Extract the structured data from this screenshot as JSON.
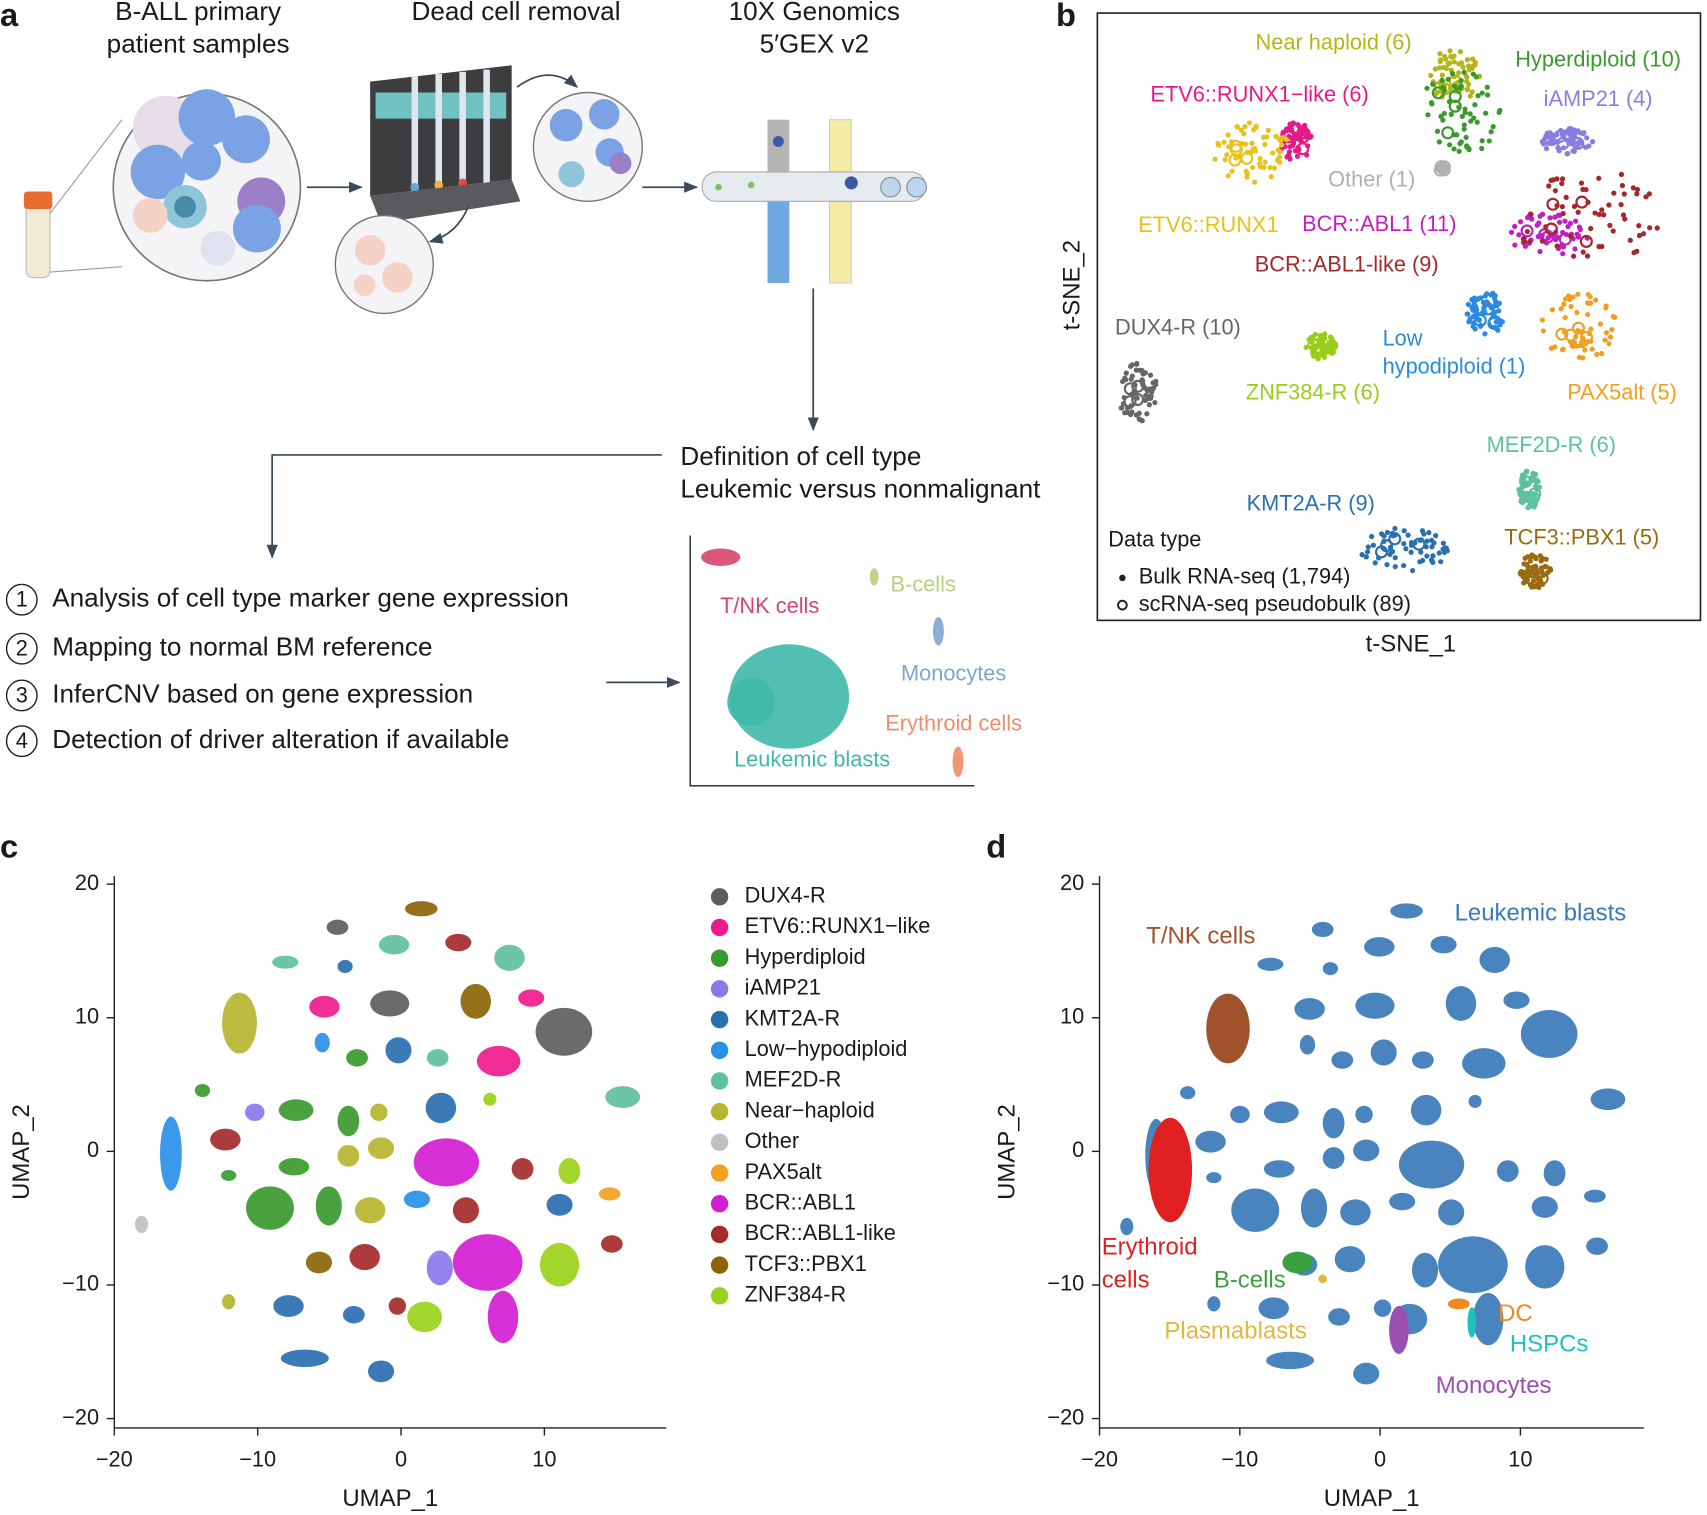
{
  "panel_a": {
    "letter": "a",
    "step1": [
      "B-ALL primary",
      "patient samples"
    ],
    "step2": "Dead cell removal",
    "step3": [
      "10X Genomics",
      "5′GEX v2"
    ],
    "definition": [
      "Definition of cell type",
      "Leukemic versus nonmalignant"
    ],
    "analyses": [
      {
        "number": "1",
        "text": "Analysis of cell type marker gene expression"
      },
      {
        "number": "2",
        "text": "Mapping to normal BM reference"
      },
      {
        "number": "3",
        "text": "InferCNV based on gene expression"
      },
      {
        "number": "4",
        "text": "Detection of driver alteration if available"
      }
    ],
    "cell_types": [
      {
        "name": "T/NK cells",
        "color": "#d8456e"
      },
      {
        "name": "B-cells",
        "color": "#b9cf7a"
      },
      {
        "name": "Monocytes",
        "color": "#7fa6cf"
      },
      {
        "name": "Erythroid cells",
        "color": "#ee8c6c"
      },
      {
        "name": "Leukemic blasts",
        "color": "#3fb8aa"
      }
    ]
  },
  "panel_b": {
    "letter": "b",
    "xlabel": "t-SNE_1",
    "ylabel": "t-SNE_2",
    "groups": [
      {
        "label": [
          "Near haploid (6)"
        ],
        "color": "#b5b51a"
      },
      {
        "label": [
          "Hyperdiploid (10)"
        ],
        "color": "#3a9a2e"
      },
      {
        "label": [
          "ETV6::RUNX1−like (6)"
        ],
        "color": "#e6198a"
      },
      {
        "label": [
          "iAMP21 (4)"
        ],
        "color": "#8a7de0"
      },
      {
        "label": [
          "Other (1)"
        ],
        "color": "#b0b0b0"
      },
      {
        "label": [
          "ETV6::RUNX1"
        ],
        "color": "#e8c21a"
      },
      {
        "label": [
          "BCR::ABL1 (11)"
        ],
        "color": "#c21ec2"
      },
      {
        "label": [
          "BCR::ABL1-like (9)"
        ],
        "color": "#a3282a"
      },
      {
        "label": [
          "DUX4-R (10)"
        ],
        "color": "#666666"
      },
      {
        "label": [
          "Low",
          "hypodiploid (1)"
        ],
        "color": "#2a8ae0"
      },
      {
        "label": [
          "ZNF384-R (6)"
        ],
        "color": "#9acd1a"
      },
      {
        "label": [
          "PAX5alt (5)"
        ],
        "color": "#f0a020"
      },
      {
        "label": [
          "MEF2D-R (6)"
        ],
        "color": "#5fc0a0"
      },
      {
        "label": [
          "KMT2A-R (9)"
        ],
        "color": "#2a70b0"
      },
      {
        "label": [
          "TCF3::PBX1 (5)"
        ],
        "color": "#9a6a10"
      }
    ],
    "legend_title": "Data type",
    "legend": [
      "Bulk RNA-seq (1,794)",
      "scRNA-seq pseudobulk (89)"
    ]
  },
  "panel_c": {
    "letter": "c",
    "xlabel": "UMAP_1",
    "ylabel": "UMAP_2",
    "xlim": [
      -20,
      18.5
    ],
    "ylim": [
      -20.7,
      20.6
    ],
    "xticks": [
      {
        "value": -20,
        "label": "−20"
      },
      {
        "value": -10,
        "label": "−10"
      },
      0,
      10
    ],
    "yticks": [
      {
        "value": -20,
        "label": "−20"
      },
      {
        "value": -10,
        "label": "−10"
      },
      0,
      10,
      20
    ],
    "legend": [
      {
        "name": "DUX4-R",
        "color": "#5e5e5e"
      },
      {
        "name": "ETV6::RUNX1−like",
        "color": "#ef1b8e"
      },
      {
        "name": "Hyperdiploid",
        "color": "#3a9a2e"
      },
      {
        "name": "iAMP21",
        "color": "#8a78e8"
      },
      {
        "name": "KMT2A-R",
        "color": "#2a6fb0"
      },
      {
        "name": "Low−hypodiploid",
        "color": "#2990e8"
      },
      {
        "name": "MEF2D-R",
        "color": "#5fc0a0"
      },
      {
        "name": "Near−haploid",
        "color": "#b5b530"
      },
      {
        "name": "Other",
        "color": "#c0c0c0"
      },
      {
        "name": "PAX5alt",
        "color": "#f5a020"
      },
      {
        "name": "BCR::ABL1",
        "color": "#d21ed2"
      },
      {
        "name": "BCR::ABL1-like",
        "color": "#a52a2a"
      },
      {
        "name": "TCF3::PBX1",
        "color": "#8b6508"
      },
      {
        "name": "ZNF384-R",
        "color": "#9ad21a"
      }
    ]
  },
  "panel_d": {
    "letter": "d",
    "xlabel": "UMAP_1",
    "ylabel": "UMAP_2",
    "xlim": [
      -20,
      18.8
    ],
    "ylim": [
      -20.7,
      20.6
    ],
    "xticks": [
      {
        "value": -20,
        "label": "−20"
      },
      {
        "value": -10,
        "label": "−10"
      },
      0,
      10
    ],
    "yticks": [
      {
        "value": -20,
        "label": "−20"
      },
      {
        "value": -10,
        "label": "−10"
      },
      0,
      10,
      20
    ],
    "labels": [
      {
        "text": [
          "Leukemic blasts"
        ],
        "color": "#3a7ab8"
      },
      {
        "text": [
          "T/NK cells"
        ],
        "color": "#a0522d"
      },
      {
        "text": [
          "Erythroid",
          "cells"
        ],
        "color": "#e02020"
      },
      {
        "text": [
          "B-cells"
        ],
        "color": "#3aa040"
      },
      {
        "text": [
          "Plasmablasts"
        ],
        "color": "#e0b840"
      },
      {
        "text": [
          "DC"
        ],
        "color": "#f08a20"
      },
      {
        "text": [
          "HSPCs"
        ],
        "color": "#20c0c0"
      },
      {
        "text": [
          "Monocytes"
        ],
        "color": "#9a50b0"
      }
    ]
  }
}
